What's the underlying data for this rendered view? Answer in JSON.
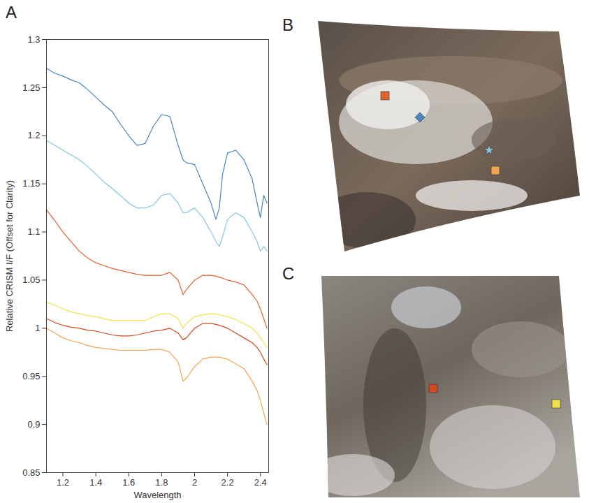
{
  "chart_data": {
    "type": "line",
    "xlabel": "Wavelength",
    "ylabel": "Relative CRISM I/F (Offset for Clarity)",
    "xlim": [
      1.1,
      2.45
    ],
    "xticks": [
      1.2,
      1.4,
      1.6,
      1.8,
      2,
      2.2,
      2.4
    ],
    "ylim": [
      0.85,
      1.3
    ],
    "yticks": [
      0.85,
      0.9,
      0.95,
      1,
      1.05,
      1.1,
      1.15,
      1.2,
      1.25,
      1.3
    ],
    "x": [
      1.1,
      1.15,
      1.2,
      1.25,
      1.3,
      1.35,
      1.4,
      1.45,
      1.5,
      1.55,
      1.6,
      1.65,
      1.7,
      1.75,
      1.8,
      1.85,
      1.9,
      1.93,
      1.95,
      2.0,
      2.05,
      2.1,
      2.13,
      2.15,
      2.17,
      2.2,
      2.25,
      2.3,
      2.35,
      2.38,
      2.4,
      2.42,
      2.44
    ],
    "series": [
      {
        "color": "#4a86c1",
        "values": [
          1.27,
          1.265,
          1.262,
          1.258,
          1.255,
          1.248,
          1.24,
          1.232,
          1.225,
          1.212,
          1.2,
          1.19,
          1.192,
          1.21,
          1.222,
          1.22,
          1.19,
          1.175,
          1.172,
          1.17,
          1.15,
          1.13,
          1.113,
          1.125,
          1.16,
          1.182,
          1.185,
          1.175,
          1.155,
          1.13,
          1.115,
          1.138,
          1.13
        ]
      },
      {
        "color": "#86c6e0",
        "values": [
          1.195,
          1.19,
          1.185,
          1.18,
          1.175,
          1.168,
          1.16,
          1.152,
          1.145,
          1.138,
          1.13,
          1.125,
          1.125,
          1.128,
          1.138,
          1.14,
          1.13,
          1.12,
          1.12,
          1.125,
          1.115,
          1.1,
          1.09,
          1.085,
          1.095,
          1.113,
          1.12,
          1.115,
          1.1,
          1.09,
          1.08,
          1.085,
          1.08
        ]
      },
      {
        "color": "#e0622f",
        "values": [
          1.123,
          1.112,
          1.1,
          1.09,
          1.08,
          1.073,
          1.068,
          1.065,
          1.062,
          1.06,
          1.058,
          1.056,
          1.055,
          1.055,
          1.055,
          1.058,
          1.05,
          1.035,
          1.04,
          1.05,
          1.055,
          1.055,
          1.054,
          1.053,
          1.052,
          1.05,
          1.048,
          1.045,
          1.035,
          1.028,
          1.02,
          1.01,
          1.0
        ]
      },
      {
        "color": "#f2e04a",
        "values": [
          1.027,
          1.024,
          1.02,
          1.017,
          1.015,
          1.013,
          1.012,
          1.01,
          1.008,
          1.008,
          1.008,
          1.008,
          1.008,
          1.012,
          1.015,
          1.015,
          1.01,
          1.0,
          1.005,
          1.012,
          1.014,
          1.015,
          1.015,
          1.014,
          1.013,
          1.012,
          1.009,
          1.005,
          1.0,
          0.995,
          0.99,
          0.985,
          0.98
        ]
      },
      {
        "color": "#d24a1e",
        "values": [
          1.01,
          1.006,
          1.003,
          1.001,
          1.0,
          0.998,
          0.997,
          0.995,
          0.993,
          0.992,
          0.992,
          0.993,
          0.995,
          0.997,
          0.998,
          1.0,
          0.995,
          0.988,
          0.99,
          1.0,
          1.005,
          1.005,
          1.004,
          1.003,
          1.002,
          1.0,
          0.995,
          0.99,
          0.985,
          0.98,
          0.975,
          0.968,
          0.962
        ]
      },
      {
        "color": "#f0a452",
        "values": [
          1.0,
          0.995,
          0.99,
          0.987,
          0.985,
          0.982,
          0.98,
          0.979,
          0.978,
          0.977,
          0.977,
          0.977,
          0.977,
          0.978,
          0.978,
          0.975,
          0.965,
          0.945,
          0.948,
          0.96,
          0.968,
          0.97,
          0.97,
          0.97,
          0.969,
          0.968,
          0.963,
          0.958,
          0.945,
          0.935,
          0.925,
          0.912,
          0.9
        ]
      }
    ]
  },
  "panel_labels": [
    "A",
    "B",
    "C"
  ]
}
